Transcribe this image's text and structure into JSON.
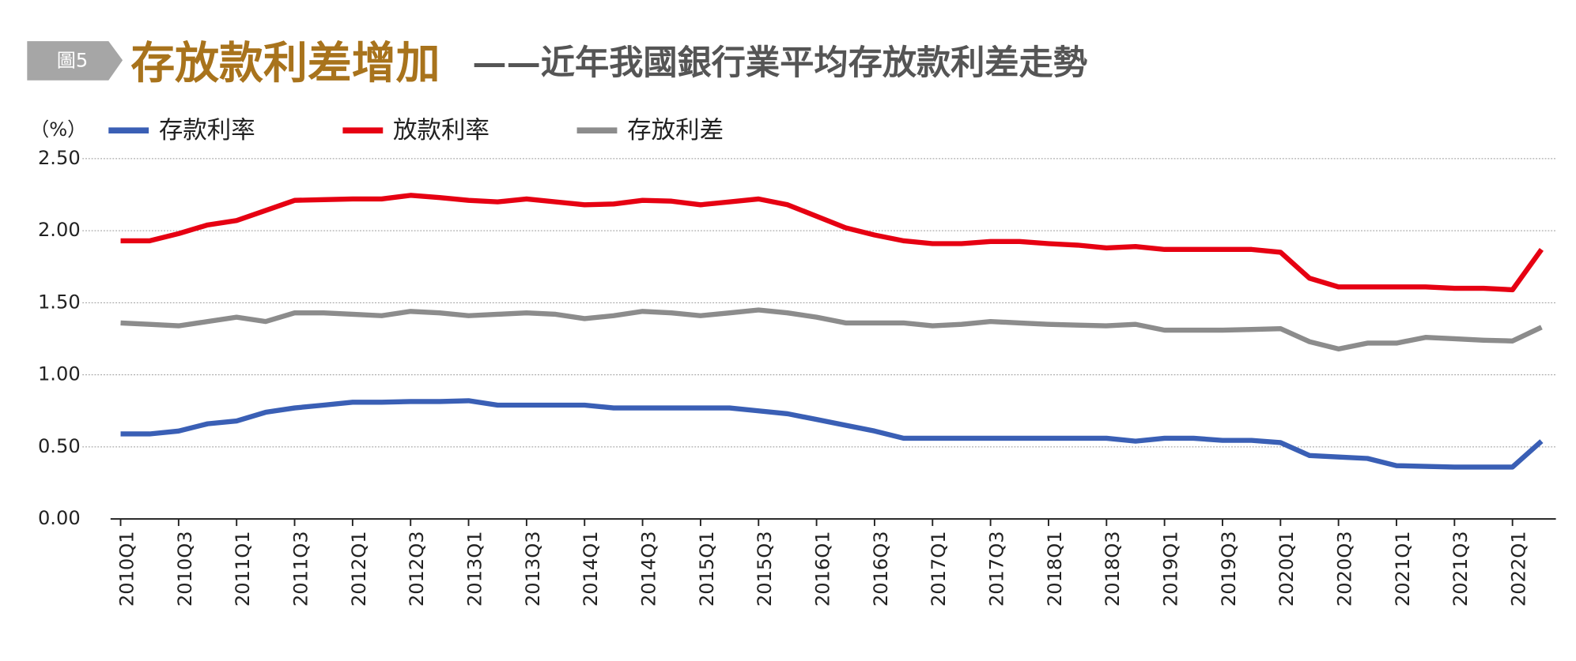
{
  "chart_data": {
    "type": "line",
    "figure_label": "圖5",
    "title": "存放款利差增加",
    "subtitle": "——近年我國銀行業平均存放款利差走勢",
    "y_label": "（%）",
    "categories": [
      "2010Q1",
      null,
      "2010Q3",
      null,
      "2011Q1",
      null,
      "2011Q3",
      null,
      "2012Q1",
      null,
      "2012Q3",
      null,
      "2013Q1",
      null,
      "2013Q3",
      null,
      "2014Q1",
      null,
      "2014Q3",
      null,
      "2015Q1",
      null,
      "2015Q3",
      null,
      "2016Q1",
      null,
      "2016Q3",
      null,
      "2017Q1",
      null,
      "2017Q3",
      null,
      "2018Q1",
      null,
      "2018Q3",
      null,
      "2019Q1",
      null,
      "2019Q3",
      null,
      "2020Q1",
      null,
      "2020Q3",
      null,
      "2021Q1",
      null,
      "2021Q3",
      null,
      "2022Q1",
      null
    ],
    "series": [
      {
        "name": "存款利率",
        "color": "#3a5fb5",
        "values": [
          0.59,
          0.59,
          0.61,
          0.66,
          0.68,
          0.74,
          0.77,
          0.79,
          0.81,
          0.81,
          0.815,
          0.815,
          0.82,
          0.79,
          0.79,
          0.79,
          0.79,
          0.77,
          0.77,
          0.77,
          0.77,
          0.77,
          0.75,
          0.73,
          0.69,
          0.65,
          0.61,
          0.56,
          0.56,
          0.56,
          0.56,
          0.56,
          0.56,
          0.56,
          0.56,
          0.54,
          0.56,
          0.56,
          0.545,
          0.545,
          0.53,
          0.44,
          0.43,
          0.42,
          0.37,
          0.365,
          0.36,
          0.36,
          0.36,
          0.54
        ]
      },
      {
        "name": "放款利率",
        "color": "#e60012",
        "values": [
          1.93,
          1.93,
          1.98,
          2.04,
          2.07,
          2.14,
          2.21,
          2.215,
          2.22,
          2.22,
          2.245,
          2.23,
          2.21,
          2.2,
          2.22,
          2.2,
          2.18,
          2.185,
          2.21,
          2.205,
          2.18,
          2.2,
          2.22,
          2.18,
          2.1,
          2.02,
          1.97,
          1.93,
          1.91,
          1.91,
          1.925,
          1.925,
          1.91,
          1.9,
          1.88,
          1.89,
          1.87,
          1.87,
          1.87,
          1.87,
          1.85,
          1.67,
          1.61,
          1.61,
          1.61,
          1.61,
          1.6,
          1.6,
          1.59,
          1.87
        ]
      },
      {
        "name": "存放利差",
        "color": "#8c8c8c",
        "values": [
          1.36,
          1.35,
          1.34,
          1.37,
          1.4,
          1.37,
          1.43,
          1.43,
          1.42,
          1.41,
          1.44,
          1.43,
          1.41,
          1.42,
          1.43,
          1.42,
          1.39,
          1.41,
          1.44,
          1.43,
          1.41,
          1.43,
          1.45,
          1.43,
          1.4,
          1.36,
          1.36,
          1.36,
          1.34,
          1.35,
          1.37,
          1.36,
          1.35,
          1.345,
          1.34,
          1.35,
          1.31,
          1.31,
          1.31,
          1.315,
          1.32,
          1.23,
          1.18,
          1.22,
          1.22,
          1.26,
          1.25,
          1.24,
          1.235,
          1.33
        ]
      }
    ],
    "ylim": [
      0,
      2.5
    ],
    "yticks": [
      {
        "value": 0,
        "label": "0.00"
      },
      {
        "value": 0.5,
        "label": "0.50"
      },
      {
        "value": 1,
        "label": "1.00"
      },
      {
        "value": 1.5,
        "label": "1.50"
      },
      {
        "value": 2,
        "label": "2.00"
      },
      {
        "value": 2.5,
        "label": "2.50"
      }
    ],
    "grid": true
  }
}
